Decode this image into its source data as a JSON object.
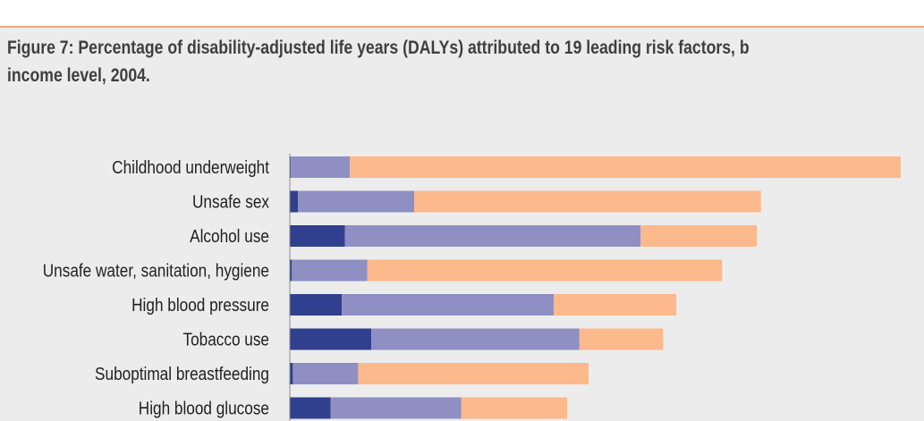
{
  "chart_data": {
    "type": "bar",
    "orientation": "horizontal",
    "stacked": true,
    "title": "Figure 7: Percentage of disability-adjusted life years (DALYs) attributed to 19 leading risk factors, b\nincome level, 2004.",
    "categories": [
      "Childhood underweight",
      "Unsafe sex",
      "Alcohol use",
      "Unsafe water, sanitation, hygiene",
      "High blood pressure",
      "Tobacco use",
      "Suboptimal breastfeeding",
      "High blood glucose"
    ],
    "series": [
      {
        "values": [
          0.05,
          0.4,
          2.7,
          0.1,
          2.55,
          4.0,
          0.15,
          2.0
        ],
        "color": "#303f8e"
      },
      {
        "values": [
          2.9,
          5.7,
          14.5,
          3.7,
          10.4,
          10.2,
          3.2,
          6.4
        ],
        "color": "#8f8fc4"
      },
      {
        "values": [
          27.0,
          17.0,
          5.7,
          17.4,
          6.0,
          4.1,
          11.3,
          5.2
        ],
        "color": "#fbb98c"
      }
    ],
    "xlim": [
      0,
      30
    ],
    "legend": "none",
    "grid": false,
    "colors": {
      "axis": "#8a8a8a",
      "divider": "#f2a77a",
      "background": "#ececec"
    }
  }
}
